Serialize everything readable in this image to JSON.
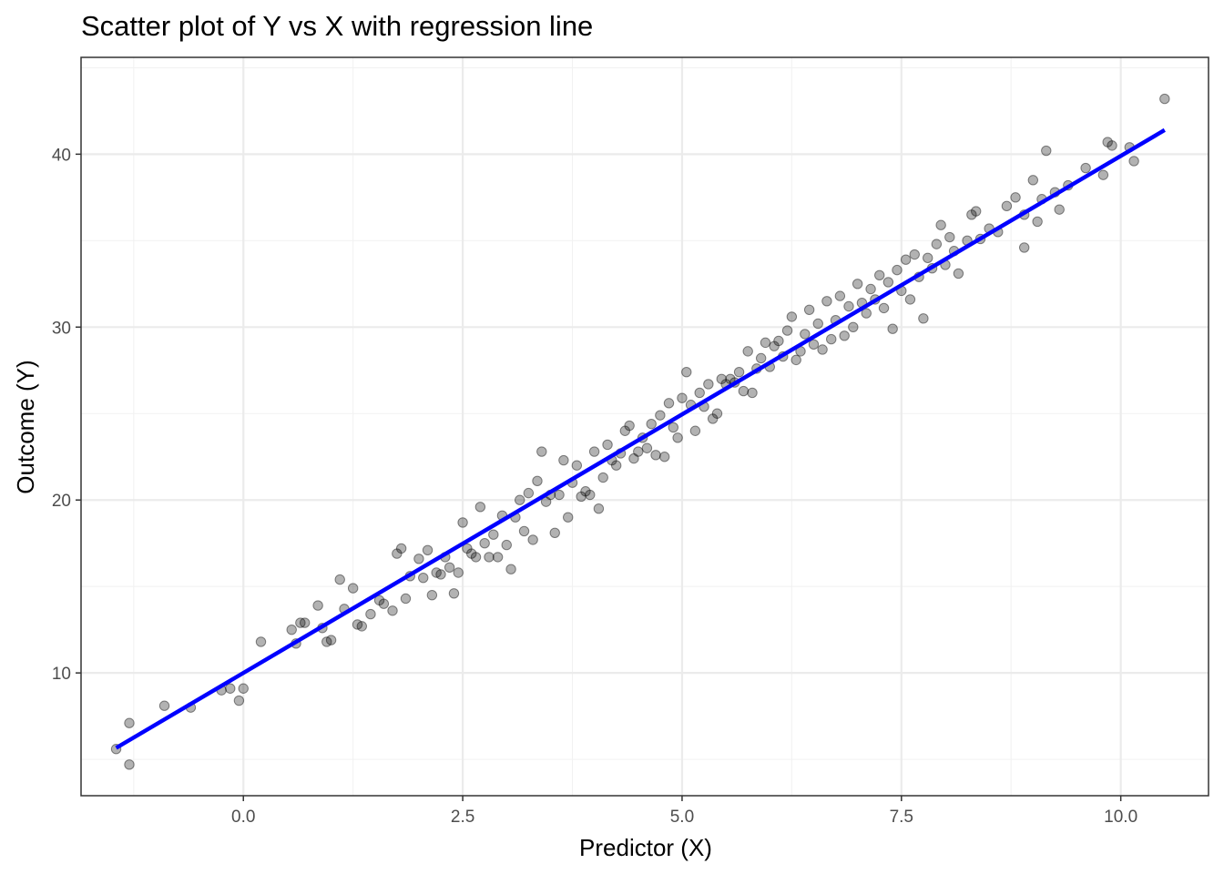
{
  "chart_data": {
    "type": "scatter",
    "title": "Scatter plot of Y vs X with regression line",
    "xlabel": "Predictor (X)",
    "ylabel": "Outcome (Y)",
    "xlim": [
      -1.85,
      11.0
    ],
    "ylim": [
      2.9,
      45.6
    ],
    "x_ticks": [
      0.0,
      2.5,
      5.0,
      7.5,
      10.0
    ],
    "x_tick_labels": [
      "0.0",
      "2.5",
      "5.0",
      "7.5",
      "10.0"
    ],
    "y_ticks": [
      10,
      20,
      30,
      40
    ],
    "y_tick_labels": [
      "10",
      "20",
      "30",
      "40"
    ],
    "grid": true,
    "regression_line": {
      "color": "#0000ff",
      "intercept": 10.0,
      "slope": 2.99,
      "x_range": [
        -1.45,
        10.5
      ]
    },
    "point_color": "#000000",
    "point_opacity": 0.3,
    "series": [
      {
        "points": [
          [
            -1.45,
            5.6
          ],
          [
            -1.3,
            7.1
          ],
          [
            -1.3,
            4.7
          ],
          [
            -0.9,
            8.1
          ],
          [
            -0.6,
            8.0
          ],
          [
            -0.25,
            9.0
          ],
          [
            -0.15,
            9.1
          ],
          [
            -0.05,
            8.4
          ],
          [
            0.0,
            9.1
          ],
          [
            0.2,
            11.8
          ],
          [
            0.55,
            12.5
          ],
          [
            0.6,
            11.7
          ],
          [
            0.65,
            12.9
          ],
          [
            0.7,
            12.9
          ],
          [
            0.85,
            13.9
          ],
          [
            0.9,
            12.6
          ],
          [
            0.95,
            11.8
          ],
          [
            1.0,
            11.9
          ],
          [
            1.1,
            15.4
          ],
          [
            1.15,
            13.7
          ],
          [
            1.25,
            14.9
          ],
          [
            1.3,
            12.8
          ],
          [
            1.35,
            12.7
          ],
          [
            1.45,
            13.4
          ],
          [
            1.55,
            14.2
          ],
          [
            1.6,
            14.0
          ],
          [
            1.7,
            13.6
          ],
          [
            1.75,
            16.9
          ],
          [
            1.8,
            17.2
          ],
          [
            1.85,
            14.3
          ],
          [
            1.9,
            15.6
          ],
          [
            2.0,
            16.6
          ],
          [
            2.05,
            15.5
          ],
          [
            2.1,
            17.1
          ],
          [
            2.15,
            14.5
          ],
          [
            2.2,
            15.8
          ],
          [
            2.25,
            15.7
          ],
          [
            2.3,
            16.7
          ],
          [
            2.35,
            16.1
          ],
          [
            2.4,
            14.6
          ],
          [
            2.45,
            15.8
          ],
          [
            2.5,
            18.7
          ],
          [
            2.55,
            17.2
          ],
          [
            2.6,
            16.9
          ],
          [
            2.65,
            16.7
          ],
          [
            2.7,
            19.6
          ],
          [
            2.75,
            17.5
          ],
          [
            2.8,
            16.7
          ],
          [
            2.85,
            18.0
          ],
          [
            2.9,
            16.7
          ],
          [
            2.95,
            19.1
          ],
          [
            3.0,
            17.4
          ],
          [
            3.05,
            16.0
          ],
          [
            3.1,
            19.0
          ],
          [
            3.15,
            20.0
          ],
          [
            3.2,
            18.2
          ],
          [
            3.25,
            20.4
          ],
          [
            3.3,
            17.7
          ],
          [
            3.35,
            21.1
          ],
          [
            3.4,
            22.8
          ],
          [
            3.45,
            19.9
          ],
          [
            3.5,
            20.3
          ],
          [
            3.55,
            18.1
          ],
          [
            3.6,
            20.3
          ],
          [
            3.65,
            22.3
          ],
          [
            3.7,
            19.0
          ],
          [
            3.75,
            21.0
          ],
          [
            3.8,
            22.0
          ],
          [
            3.85,
            20.2
          ],
          [
            3.9,
            20.5
          ],
          [
            3.95,
            20.3
          ],
          [
            4.0,
            22.8
          ],
          [
            4.05,
            19.5
          ],
          [
            4.1,
            21.3
          ],
          [
            4.15,
            23.2
          ],
          [
            4.2,
            22.3
          ],
          [
            4.25,
            22.0
          ],
          [
            4.3,
            22.7
          ],
          [
            4.35,
            24.0
          ],
          [
            4.4,
            24.3
          ],
          [
            4.45,
            22.4
          ],
          [
            4.5,
            22.8
          ],
          [
            4.55,
            23.6
          ],
          [
            4.6,
            23.0
          ],
          [
            4.65,
            24.4
          ],
          [
            4.7,
            22.6
          ],
          [
            4.75,
            24.9
          ],
          [
            4.8,
            22.5
          ],
          [
            4.85,
            25.6
          ],
          [
            4.9,
            24.2
          ],
          [
            4.95,
            23.6
          ],
          [
            5.0,
            25.9
          ],
          [
            5.05,
            27.4
          ],
          [
            5.1,
            25.5
          ],
          [
            5.15,
            24.0
          ],
          [
            5.2,
            26.2
          ],
          [
            5.25,
            25.4
          ],
          [
            5.3,
            26.7
          ],
          [
            5.35,
            24.7
          ],
          [
            5.4,
            25.0
          ],
          [
            5.45,
            27.0
          ],
          [
            5.5,
            26.7
          ],
          [
            5.55,
            27.0
          ],
          [
            5.6,
            26.8
          ],
          [
            5.65,
            27.4
          ],
          [
            5.7,
            26.3
          ],
          [
            5.75,
            28.6
          ],
          [
            5.8,
            26.2
          ],
          [
            5.85,
            27.6
          ],
          [
            5.9,
            28.2
          ],
          [
            5.95,
            29.1
          ],
          [
            6.0,
            27.7
          ],
          [
            6.05,
            28.9
          ],
          [
            6.1,
            29.2
          ],
          [
            6.15,
            28.3
          ],
          [
            6.2,
            29.8
          ],
          [
            6.25,
            30.6
          ],
          [
            6.3,
            28.1
          ],
          [
            6.35,
            28.6
          ],
          [
            6.4,
            29.6
          ],
          [
            6.45,
            31.0
          ],
          [
            6.5,
            29.0
          ],
          [
            6.55,
            30.2
          ],
          [
            6.6,
            28.7
          ],
          [
            6.65,
            31.5
          ],
          [
            6.7,
            29.3
          ],
          [
            6.75,
            30.4
          ],
          [
            6.8,
            31.8
          ],
          [
            6.85,
            29.5
          ],
          [
            6.9,
            31.2
          ],
          [
            6.95,
            30.0
          ],
          [
            7.0,
            32.5
          ],
          [
            7.05,
            31.4
          ],
          [
            7.1,
            30.8
          ],
          [
            7.15,
            32.2
          ],
          [
            7.2,
            31.6
          ],
          [
            7.25,
            33.0
          ],
          [
            7.3,
            31.1
          ],
          [
            7.35,
            32.6
          ],
          [
            7.4,
            29.9
          ],
          [
            7.45,
            33.3
          ],
          [
            7.5,
            32.1
          ],
          [
            7.55,
            33.9
          ],
          [
            7.6,
            31.6
          ],
          [
            7.65,
            34.2
          ],
          [
            7.7,
            32.9
          ],
          [
            7.75,
            30.5
          ],
          [
            7.8,
            34.0
          ],
          [
            7.85,
            33.4
          ],
          [
            7.9,
            34.8
          ],
          [
            7.95,
            35.9
          ],
          [
            8.0,
            33.6
          ],
          [
            8.05,
            35.2
          ],
          [
            8.1,
            34.4
          ],
          [
            8.15,
            33.1
          ],
          [
            8.25,
            35.0
          ],
          [
            8.3,
            36.5
          ],
          [
            8.35,
            36.7
          ],
          [
            8.4,
            35.1
          ],
          [
            8.5,
            35.7
          ],
          [
            8.6,
            35.5
          ],
          [
            8.7,
            37.0
          ],
          [
            8.8,
            37.5
          ],
          [
            8.9,
            36.5
          ],
          [
            8.9,
            34.6
          ],
          [
            9.0,
            38.5
          ],
          [
            9.05,
            36.1
          ],
          [
            9.1,
            37.4
          ],
          [
            9.15,
            40.2
          ],
          [
            9.25,
            37.8
          ],
          [
            9.3,
            36.8
          ],
          [
            9.4,
            38.2
          ],
          [
            9.6,
            39.2
          ],
          [
            9.8,
            38.8
          ],
          [
            9.85,
            40.7
          ],
          [
            9.9,
            40.5
          ],
          [
            10.1,
            40.4
          ],
          [
            10.15,
            39.6
          ],
          [
            10.5,
            43.2
          ]
        ]
      }
    ]
  }
}
